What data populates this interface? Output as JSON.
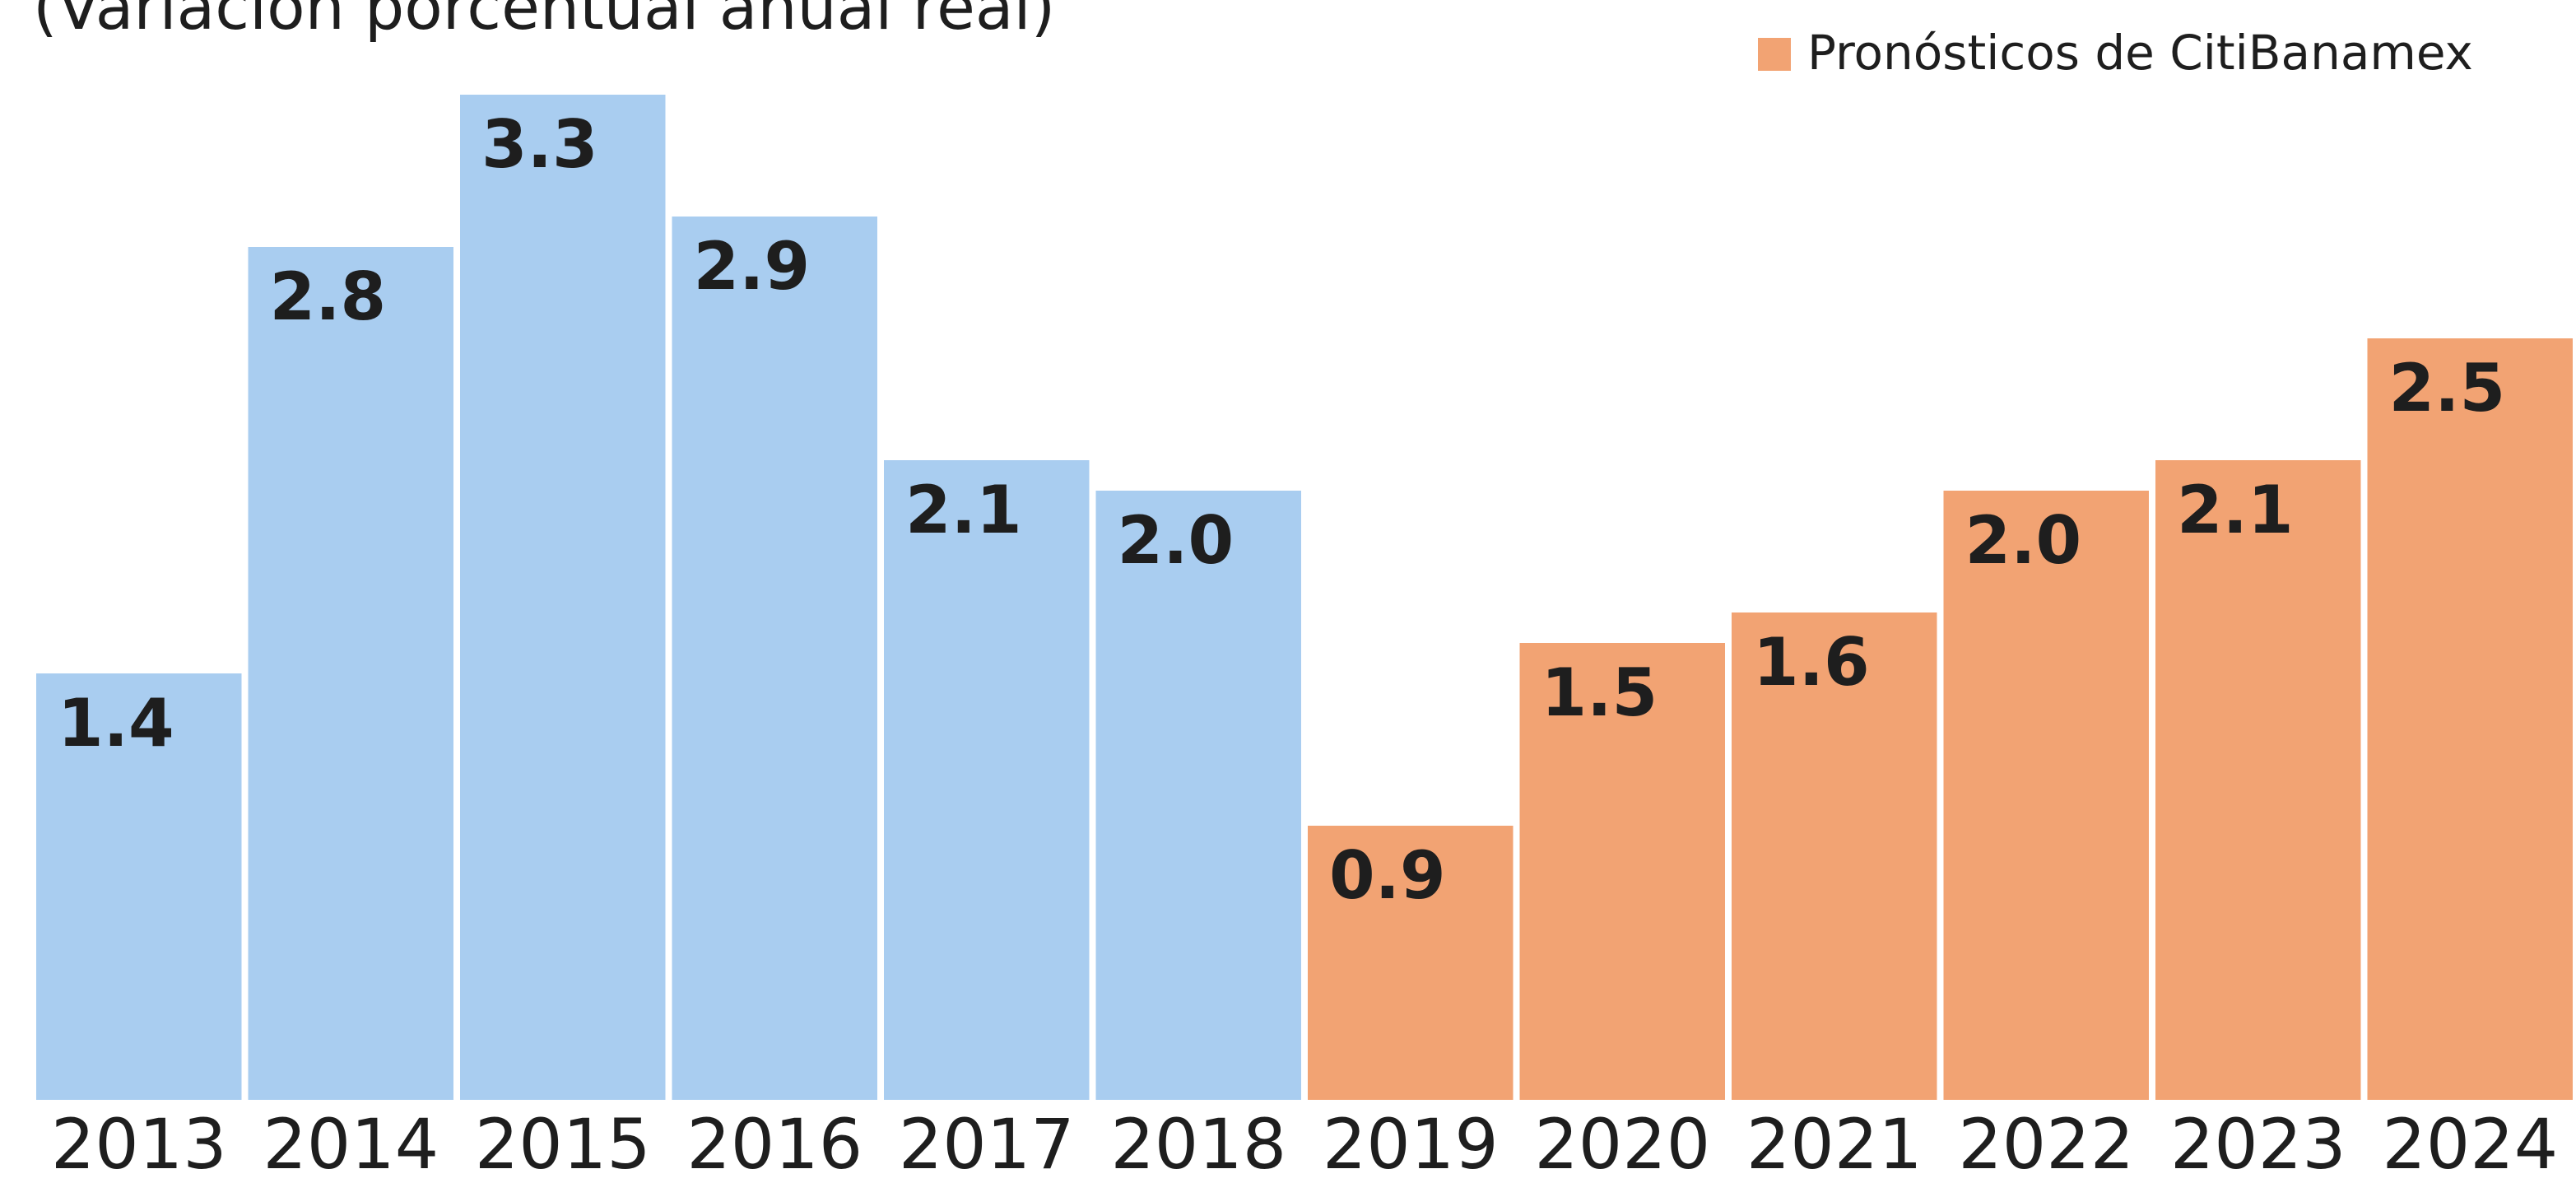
{
  "chart_data": {
    "type": "bar",
    "subtitle": "(Variación porcentual anual real)",
    "categories": [
      "2013",
      "2014",
      "2015",
      "2016",
      "2017",
      "2018",
      "2019",
      "2020",
      "2021",
      "2022",
      "2023",
      "2024"
    ],
    "values": [
      1.4,
      2.8,
      3.3,
      2.9,
      2.1,
      2.0,
      0.9,
      1.5,
      1.6,
      2.0,
      2.1,
      2.5
    ],
    "value_labels": [
      "1.4",
      "2.8",
      "3.3",
      "2.9",
      "2.1",
      "2.0",
      "0.9",
      "1.5",
      "1.6",
      "2.0",
      "2.1",
      "2.5"
    ],
    "colors": [
      "#a9cdf0",
      "#a9cdf0",
      "#a9cdf0",
      "#a9cdf0",
      "#a9cdf0",
      "#a9cdf0",
      "#f2a373",
      "#f2a373",
      "#f2a373",
      "#f2a373",
      "#f2a373",
      "#f2a373"
    ],
    "legend": {
      "label": "Pronósticos de CitiBanamex",
      "color": "#f2a373",
      "position": "upper right"
    },
    "ylim": [
      0,
      3.5
    ]
  }
}
